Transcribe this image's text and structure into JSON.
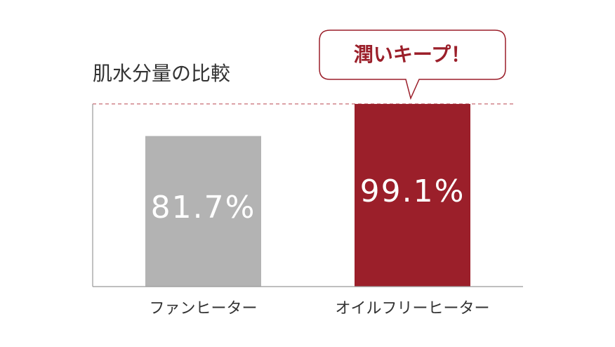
{
  "chart_data": {
    "type": "bar",
    "title": "肌水分量の比較",
    "annotation": "潤いキープ！",
    "categories": [
      "ファンヒーター",
      "オイルフリーヒーター"
    ],
    "values": [
      81.7,
      99.1
    ],
    "value_labels": [
      "81.7%",
      "99.1%"
    ],
    "colors": [
      "#b3b3b3",
      "#9b1f2a"
    ],
    "ylim": [
      0,
      100
    ]
  }
}
